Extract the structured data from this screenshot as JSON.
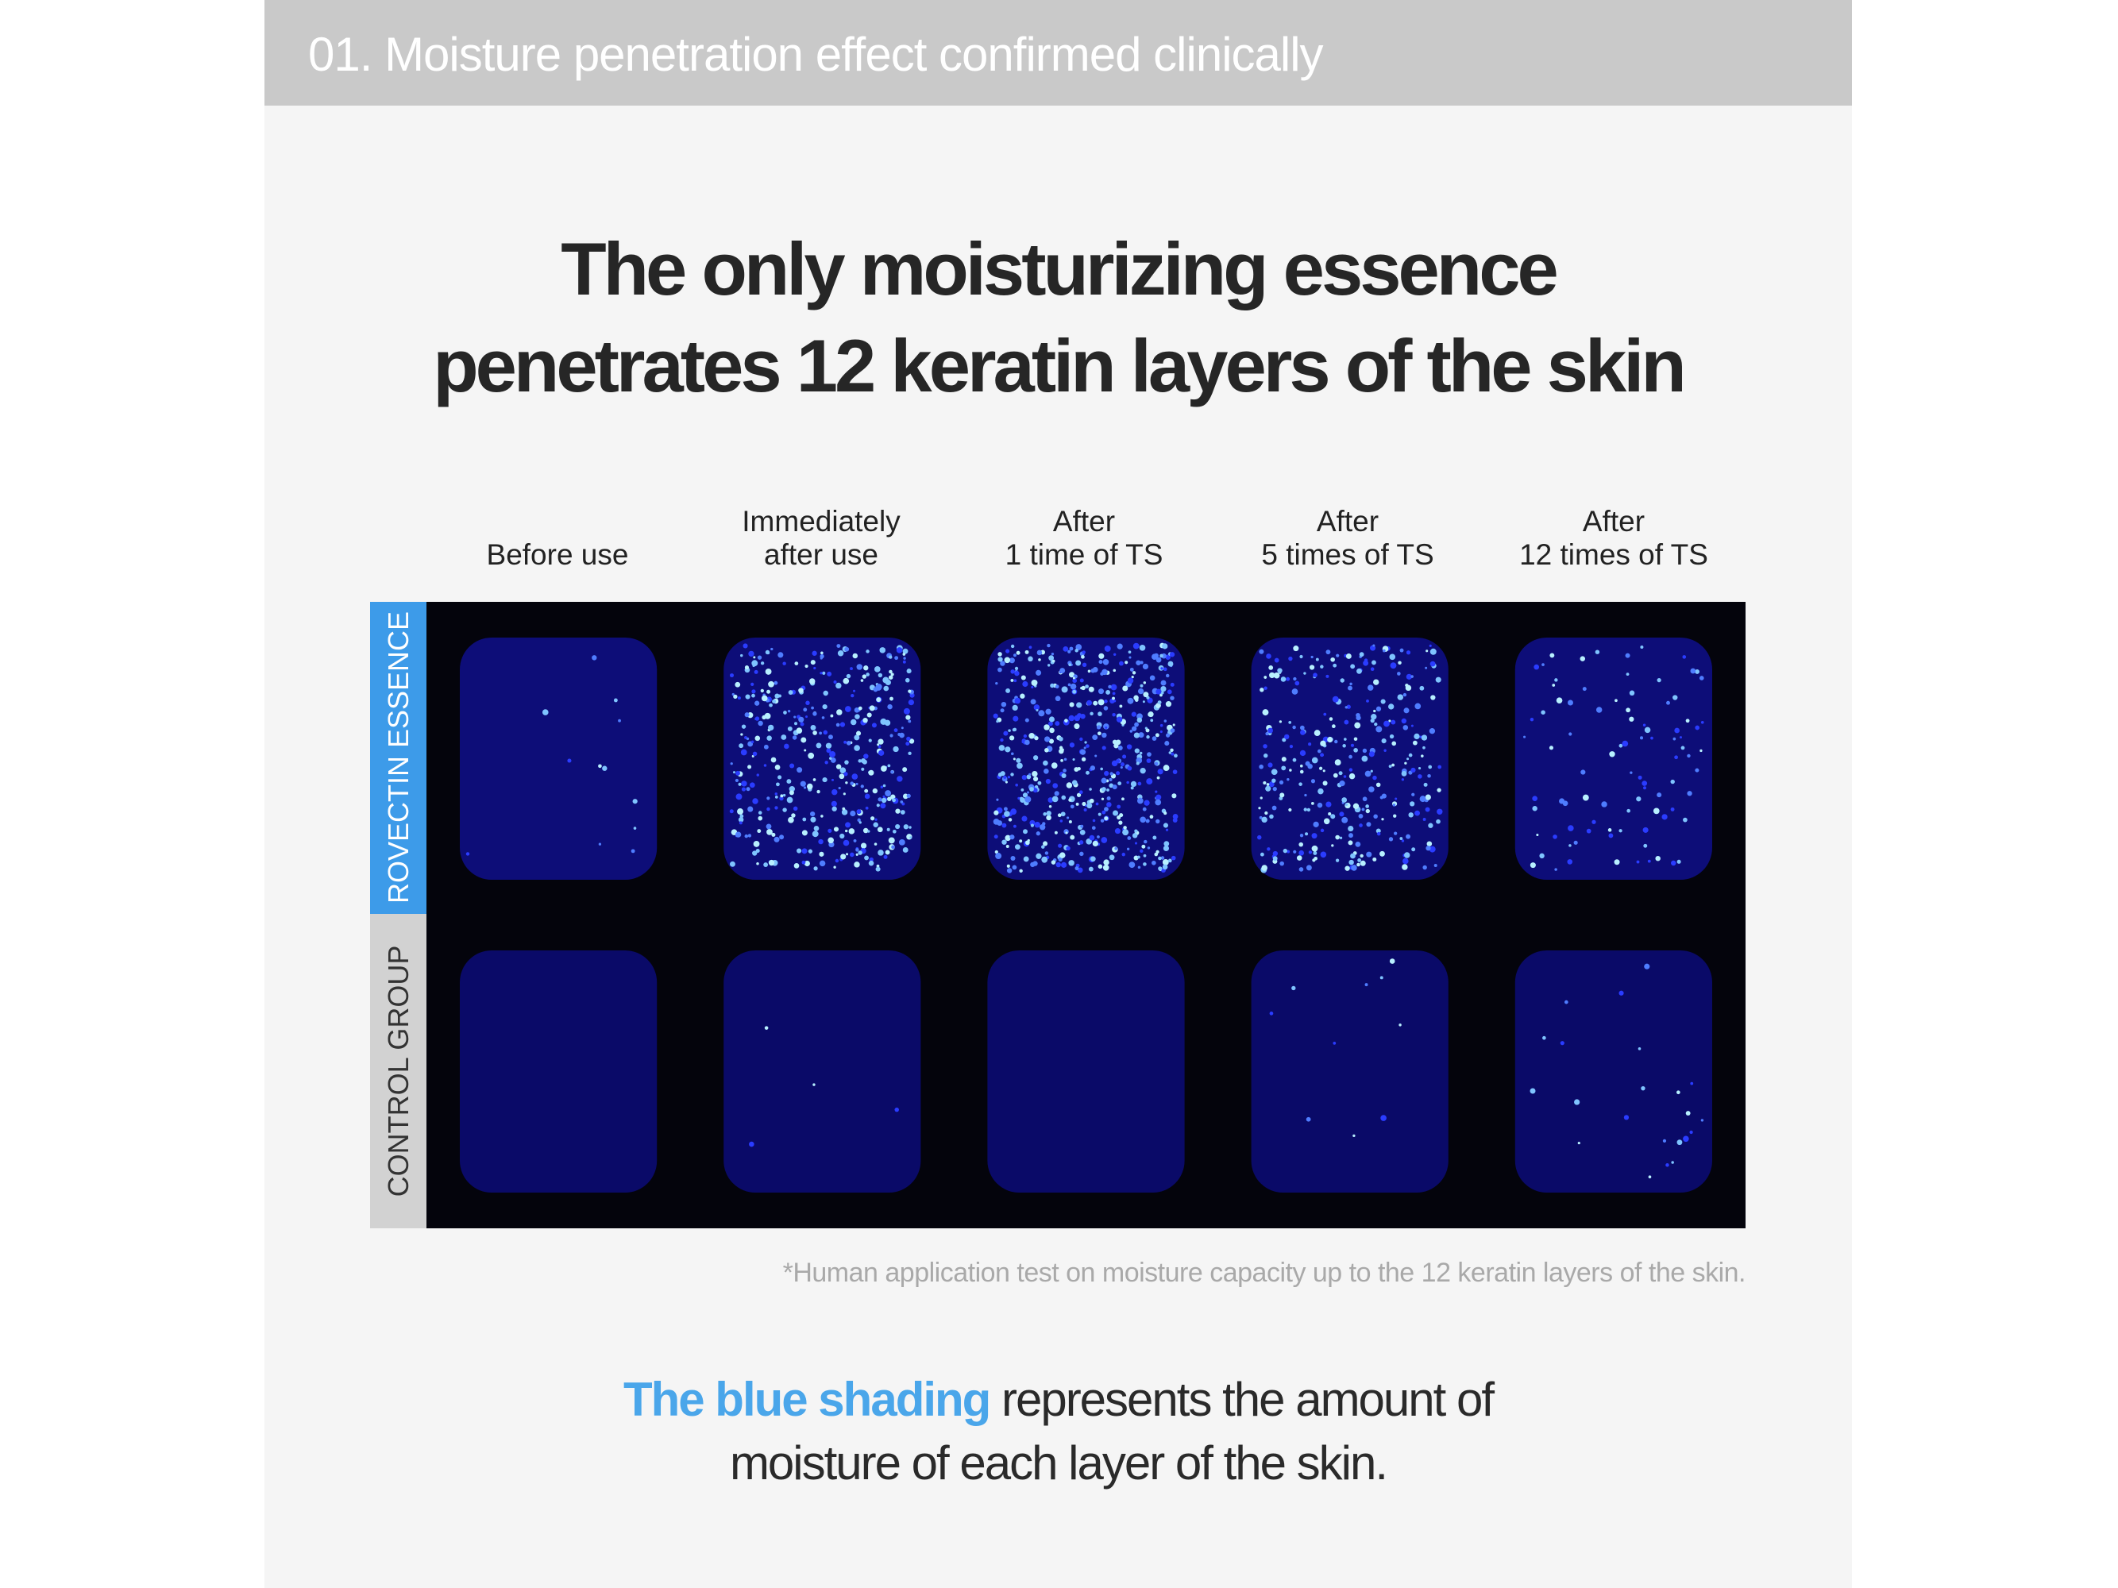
{
  "header": {
    "title": "01. Moisture penetration effect confirmed clinically"
  },
  "headline": {
    "lines": [
      "The only moisturizing essence",
      "penetrates 12 keratin layers of the skin"
    ]
  },
  "columns": [
    [
      "Before use"
    ],
    [
      "Immediately",
      "after use"
    ],
    [
      "After",
      "1 time of TS"
    ],
    [
      "After",
      "5 times of TS"
    ],
    [
      "After",
      "12 times of TS"
    ]
  ],
  "rows": [
    "ROVECTIN ESSENCE",
    "CONTROL GROUP"
  ],
  "footnote": "*Human application test on moisture capacity up to the 12 keratin layers of the skin.",
  "caption": {
    "highlight": "The blue shading",
    "line1": "represents the amount of",
    "line2": "moisture of each layer of the skin."
  }
}
